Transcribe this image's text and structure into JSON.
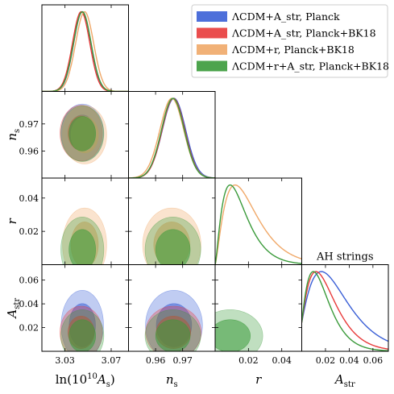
{
  "chart_data": {
    "type": "triangle-corner",
    "legend": {
      "placement": "top-right",
      "entries": [
        {
          "label": "ΛCDM+A_str, Planck",
          "color": "#3a5fd6"
        },
        {
          "label": "ΛCDM+A_str, Planck+BK18",
          "color": "#e83a3a"
        },
        {
          "label": "ΛCDM+r, Planck+BK18",
          "color": "#f0a868"
        },
        {
          "label": "ΛCDM+r+A_str, Planck+BK18",
          "color": "#3a9a3a"
        }
      ]
    },
    "annotation": "AH strings",
    "parameters": [
      {
        "name": "ln(10^10 A_s)",
        "label_main": "ln(10",
        "label_sup": "10",
        "label_mid": "A",
        "label_sub": "s",
        "label_end": ")",
        "range": [
          3.01,
          3.085
        ],
        "ticks": [
          3.03,
          3.07
        ],
        "tick_labels": [
          "3.03",
          "3.07"
        ]
      },
      {
        "name": "n_s",
        "label_main": "n",
        "label_sub": "s",
        "range": [
          0.95,
          0.982
        ],
        "ticks": [
          0.96,
          0.97
        ],
        "tick_labels": [
          "0.96",
          "0.97"
        ]
      },
      {
        "name": "r",
        "label_main": "r",
        "label_sub": "",
        "range": [
          0.0,
          0.052
        ],
        "ticks": [
          0.02,
          0.04
        ],
        "tick_labels": [
          "0.02",
          "0.04"
        ]
      },
      {
        "name": "A_str",
        "label_main": "A",
        "label_sub": "str",
        "range": [
          0.0,
          0.073
        ],
        "ticks": [
          0.02,
          0.04,
          0.06
        ],
        "tick_labels": [
          "0.02",
          "0.04",
          "0.06"
        ]
      }
    ],
    "series": [
      {
        "name": "ΛCDM+A_str, Planck",
        "color": "#3a5fd6",
        "mean": {
          "ln(10^10 A_s)": 3.045,
          "n_s": 0.9668,
          "A_str": 0.022
        },
        "sigma": {
          "ln(10^10 A_s)": 0.0075,
          "n_s": 0.0043,
          "A_str": 0.012
        }
      },
      {
        "name": "ΛCDM+A_str, Planck+BK18",
        "color": "#e83a3a",
        "mean": {
          "ln(10^10 A_s)": 3.044,
          "n_s": 0.9666,
          "A_str": 0.016
        },
        "sigma": {
          "ln(10^10 A_s)": 0.0075,
          "n_s": 0.0042,
          "A_str": 0.009
        }
      },
      {
        "name": "ΛCDM+r, Planck+BK18",
        "color": "#f0a868",
        "mean": {
          "ln(10^10 A_s)": 3.047,
          "n_s": 0.966,
          "r": 0.012
        },
        "sigma": {
          "ln(10^10 A_s)": 0.0078,
          "n_s": 0.0044,
          "r": 0.009
        }
      },
      {
        "name": "ΛCDM+r+A_str, Planck+BK18",
        "color": "#3a9a3a",
        "mean": {
          "ln(10^10 A_s)": 3.045,
          "n_s": 0.9664,
          "r": 0.009,
          "A_str": 0.013
        },
        "sigma": {
          "ln(10^10 A_s)": 0.0076,
          "n_s": 0.0042,
          "r": 0.008,
          "A_str": 0.009
        }
      }
    ]
  }
}
